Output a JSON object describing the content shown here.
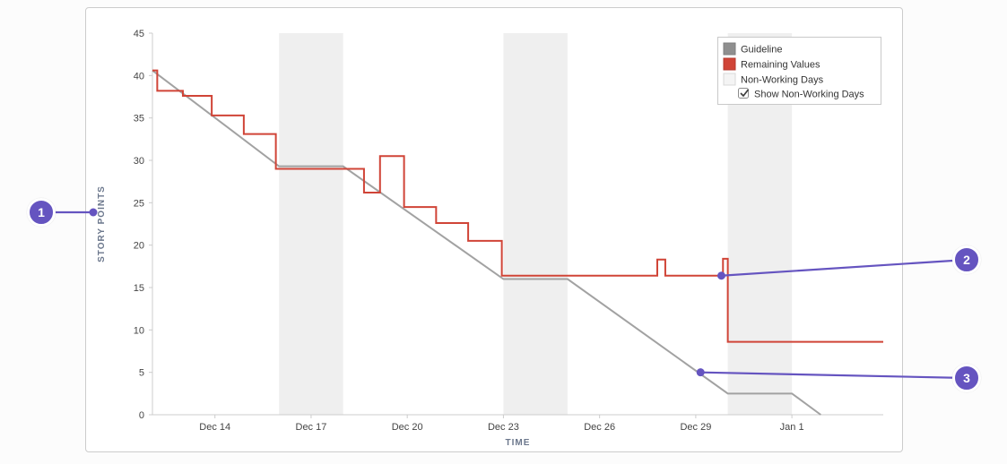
{
  "annotations": [
    {
      "label": "1",
      "points_to": "story-points-axis-label"
    },
    {
      "label": "2",
      "points_to": "remaining-values-line",
      "point": {
        "day": 29.8,
        "value": 16.4
      }
    },
    {
      "label": "3",
      "points_to": "guideline",
      "point": {
        "day": 29.15,
        "value": 5.0
      }
    }
  ],
  "chart_data": {
    "type": "line",
    "title": "",
    "xlabel": "TIME",
    "ylabel": "STORY POINTS",
    "ylim": [
      0,
      45
    ],
    "y_ticks": [
      0,
      5,
      10,
      15,
      20,
      25,
      30,
      35,
      40,
      45
    ],
    "x_domain": [
      12.05,
      34.85
    ],
    "x_ticks": [
      {
        "day": 14,
        "label": "Dec 14"
      },
      {
        "day": 17,
        "label": "Dec 17"
      },
      {
        "day": 20,
        "label": "Dec 20"
      },
      {
        "day": 23,
        "label": "Dec 23"
      },
      {
        "day": 26,
        "label": "Dec 26"
      },
      {
        "day": 29,
        "label": "Dec 29"
      },
      {
        "day": 32,
        "label": "Jan 1"
      }
    ],
    "grid": false,
    "legend_position": "top-right",
    "non_working_days": {
      "visible": true,
      "bands": [
        [
          16,
          18
        ],
        [
          23,
          25
        ],
        [
          30,
          32
        ]
      ]
    },
    "series": [
      {
        "name": "Guideline",
        "color": "#a2a2a2",
        "points": [
          [
            12.05,
            40.6
          ],
          [
            16,
            29.3
          ],
          [
            18,
            29.3
          ],
          [
            23,
            16.0
          ],
          [
            25,
            16.0
          ],
          [
            30,
            2.5
          ],
          [
            32,
            2.5
          ],
          [
            32.9,
            0
          ]
        ]
      },
      {
        "name": "Remaining Values",
        "color": "#d04437",
        "points": [
          [
            12.05,
            40.6
          ],
          [
            12.2,
            40.6
          ],
          [
            12.2,
            38.2
          ],
          [
            13.0,
            38.2
          ],
          [
            13.0,
            37.6
          ],
          [
            13.9,
            37.6
          ],
          [
            13.9,
            35.3
          ],
          [
            14.9,
            35.3
          ],
          [
            14.9,
            33.1
          ],
          [
            15.9,
            33.1
          ],
          [
            15.9,
            29.0
          ],
          [
            18.65,
            29.0
          ],
          [
            18.65,
            26.2
          ],
          [
            19.15,
            26.2
          ],
          [
            19.15,
            30.5
          ],
          [
            19.9,
            30.5
          ],
          [
            19.9,
            24.5
          ],
          [
            20.9,
            24.5
          ],
          [
            20.9,
            22.6
          ],
          [
            21.9,
            22.6
          ],
          [
            21.9,
            20.5
          ],
          [
            22.95,
            20.5
          ],
          [
            22.95,
            16.4
          ],
          [
            27.8,
            16.4
          ],
          [
            27.8,
            18.3
          ],
          [
            28.05,
            18.3
          ],
          [
            28.05,
            16.4
          ],
          [
            29.85,
            16.4
          ],
          [
            29.85,
            18.4
          ],
          [
            30.0,
            18.4
          ],
          [
            30.0,
            8.6
          ],
          [
            34.85,
            8.6
          ]
        ]
      }
    ],
    "legend": {
      "items": [
        {
          "label": "Guideline",
          "swatch": "#8f8f8f",
          "swatch_border": "#7f7f7f"
        },
        {
          "label": "Remaining Values",
          "swatch": "#d04437",
          "swatch_border": "#b53a2f"
        },
        {
          "label": "Non-Working Days",
          "swatch": "#f4f4f4",
          "swatch_border": "#d8d8d8"
        }
      ],
      "checkbox": {
        "label": "Show Non-Working Days",
        "checked": true
      }
    },
    "colors": {
      "band": "#efefef",
      "axis": "#cccccc",
      "tick_text": "#444444",
      "axis_title": "#6b778c",
      "legend_text": "#333333",
      "annotation": "#6554c0"
    }
  }
}
